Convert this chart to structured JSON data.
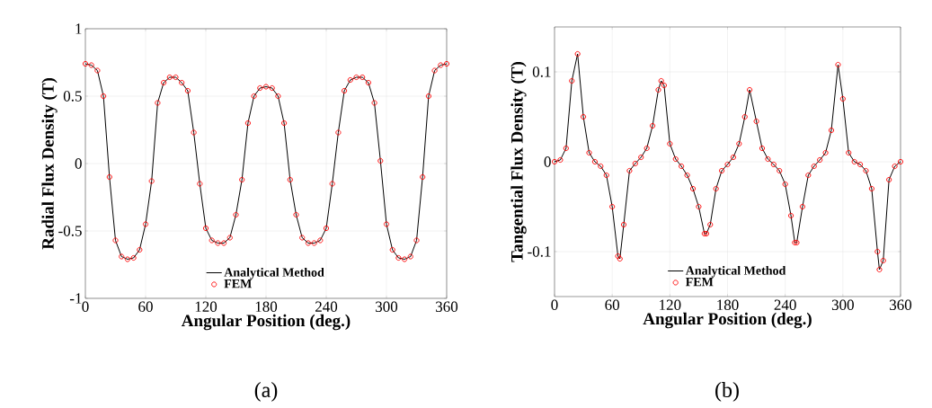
{
  "chart_data": [
    {
      "type": "line",
      "xlabel": "Angular Position (deg.)",
      "ylabel": "Radial Flux Density (T)",
      "annotations": [
        "(a)"
      ],
      "xlim": [
        0,
        360
      ],
      "ylim": [
        -1,
        1
      ],
      "xticks": [
        0,
        60,
        120,
        180,
        240,
        300,
        360
      ],
      "yticks": [
        -1,
        -0.5,
        0,
        0.5,
        1
      ],
      "grid": true,
      "legend": "bottom",
      "x": [
        0,
        6,
        12,
        18,
        24,
        30,
        36,
        42,
        48,
        54,
        60,
        66,
        72,
        78,
        84,
        90,
        96,
        102,
        108,
        114,
        120,
        126,
        132,
        138,
        144,
        150,
        156,
        162,
        168,
        174,
        180,
        186,
        192,
        198,
        204,
        210,
        216,
        222,
        228,
        234,
        240,
        246,
        252,
        258,
        264,
        270,
        276,
        282,
        288,
        294,
        300,
        306,
        312,
        318,
        324,
        330,
        336,
        342,
        348,
        354,
        360
      ],
      "series": [
        {
          "name": "Analytical Method",
          "color": "#000000",
          "marker": "none",
          "values": [
            0.74,
            0.73,
            0.69,
            0.5,
            -0.1,
            -0.57,
            -0.69,
            -0.71,
            -0.7,
            -0.64,
            -0.45,
            -0.13,
            0.45,
            0.6,
            0.64,
            0.64,
            0.6,
            0.54,
            0.23,
            -0.15,
            -0.48,
            -0.57,
            -0.59,
            -0.59,
            -0.55,
            -0.38,
            -0.12,
            0.3,
            0.5,
            0.56,
            0.57,
            0.56,
            0.5,
            0.3,
            -0.12,
            -0.38,
            -0.55,
            -0.59,
            -0.59,
            -0.57,
            -0.48,
            -0.15,
            0.23,
            0.54,
            0.62,
            0.64,
            0.64,
            0.6,
            0.45,
            0.02,
            -0.45,
            -0.64,
            -0.7,
            -0.71,
            -0.69,
            -0.57,
            -0.1,
            0.5,
            0.69,
            0.73,
            0.74
          ]
        },
        {
          "name": "FEM",
          "type": "scatter",
          "color": "#ff0000",
          "marker": "circle",
          "values": [
            0.74,
            0.73,
            0.69,
            0.5,
            -0.1,
            -0.57,
            -0.69,
            -0.71,
            -0.7,
            -0.64,
            -0.45,
            -0.13,
            0.45,
            0.6,
            0.64,
            0.64,
            0.6,
            0.54,
            0.23,
            -0.15,
            -0.48,
            -0.57,
            -0.59,
            -0.59,
            -0.55,
            -0.38,
            -0.12,
            0.3,
            0.5,
            0.56,
            0.57,
            0.56,
            0.5,
            0.3,
            -0.12,
            -0.38,
            -0.55,
            -0.59,
            -0.59,
            -0.57,
            -0.48,
            -0.15,
            0.23,
            0.54,
            0.62,
            0.64,
            0.64,
            0.6,
            0.45,
            0.02,
            -0.45,
            -0.64,
            -0.7,
            -0.71,
            -0.69,
            -0.57,
            -0.1,
            0.5,
            0.69,
            0.73,
            0.74
          ]
        }
      ]
    },
    {
      "type": "line",
      "xlabel": "Angular Position (deg.)",
      "ylabel": "Tangential Flux Density (T)",
      "annotations": [
        "(b)"
      ],
      "xlim": [
        0,
        360
      ],
      "ylim": [
        -0.15,
        0.15
      ],
      "xticks": [
        0,
        60,
        120,
        180,
        240,
        300,
        360
      ],
      "yticks": [
        -0.1,
        0,
        0.1
      ],
      "grid": true,
      "legend": "bottom",
      "x": [
        0,
        6,
        12,
        18,
        24,
        30,
        36,
        42,
        48,
        54,
        60,
        66,
        68,
        72,
        78,
        84,
        90,
        96,
        102,
        108,
        111,
        114,
        120,
        126,
        132,
        138,
        144,
        150,
        156,
        158,
        162,
        168,
        174,
        180,
        186,
        192,
        198,
        203,
        210,
        216,
        222,
        228,
        234,
        240,
        246,
        250,
        252,
        258,
        264,
        270,
        276,
        282,
        288,
        295,
        300,
        306,
        312,
        318,
        324,
        330,
        336,
        338,
        342,
        348,
        354,
        360
      ],
      "series": [
        {
          "name": "Analytical Method",
          "color": "#000000",
          "marker": "none",
          "values": [
            0,
            0.002,
            0.015,
            0.09,
            0.12,
            0.05,
            0.01,
            0,
            -0.005,
            -0.015,
            -0.05,
            -0.105,
            -0.108,
            -0.07,
            -0.01,
            -0.002,
            0.005,
            0.015,
            0.04,
            0.08,
            0.09,
            0.085,
            0.02,
            0.003,
            -0.005,
            -0.015,
            -0.03,
            -0.05,
            -0.08,
            -0.08,
            -0.07,
            -0.03,
            -0.01,
            -0.003,
            0.005,
            0.02,
            0.05,
            0.08,
            0.045,
            0.015,
            0.003,
            -0.003,
            -0.01,
            -0.025,
            -0.06,
            -0.09,
            -0.09,
            -0.05,
            -0.015,
            -0.005,
            0.002,
            0.01,
            0.035,
            0.108,
            0.07,
            0.01,
            0,
            -0.003,
            -0.01,
            -0.03,
            -0.1,
            -0.12,
            -0.11,
            -0.02,
            -0.005,
            0
          ]
        },
        {
          "name": "FEM",
          "type": "scatter",
          "color": "#ff0000",
          "marker": "circle",
          "values": [
            0,
            0.002,
            0.015,
            0.09,
            0.12,
            0.05,
            0.01,
            0,
            -0.005,
            -0.015,
            -0.05,
            -0.105,
            -0.108,
            -0.07,
            -0.01,
            -0.002,
            0.005,
            0.015,
            0.04,
            0.08,
            0.09,
            0.085,
            0.02,
            0.003,
            -0.005,
            -0.015,
            -0.03,
            -0.05,
            -0.08,
            -0.08,
            -0.07,
            -0.03,
            -0.01,
            -0.003,
            0.005,
            0.02,
            0.05,
            0.08,
            0.045,
            0.015,
            0.003,
            -0.003,
            -0.01,
            -0.025,
            -0.06,
            -0.09,
            -0.09,
            -0.05,
            -0.015,
            -0.005,
            0.002,
            0.01,
            0.035,
            0.108,
            0.07,
            0.01,
            0,
            -0.003,
            -0.01,
            -0.03,
            -0.1,
            -0.12,
            -0.11,
            -0.02,
            -0.005,
            0
          ]
        }
      ]
    }
  ]
}
